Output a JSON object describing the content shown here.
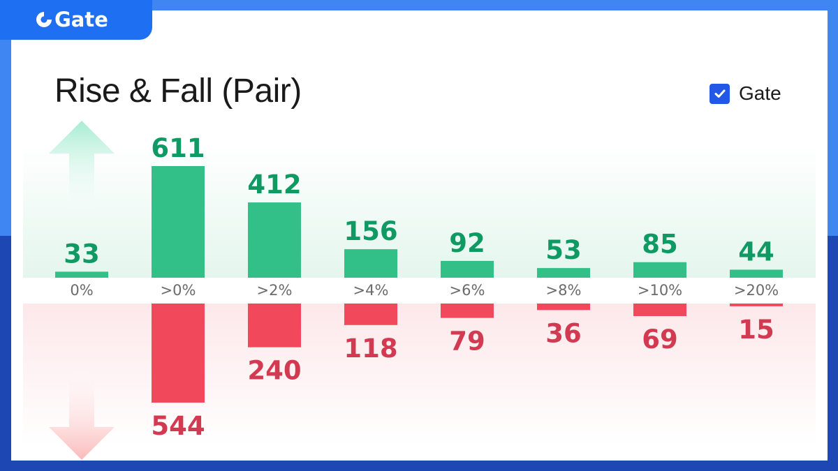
{
  "brand": {
    "name": "Gate"
  },
  "title": "Rise & Fall (Pair)",
  "legend": {
    "label": "Gate",
    "checked": true
  },
  "colors": {
    "rise": "#32c088",
    "rise_text": "#0f9a63",
    "fall": "#f2485c",
    "fall_text": "#d23a52",
    "accent": "#2357e6"
  },
  "chart_data": {
    "type": "bar",
    "categories": [
      "0%",
      ">0%",
      ">2%",
      ">4%",
      ">6%",
      ">8%",
      ">10%",
      ">20%"
    ],
    "series": [
      {
        "values": [
          33,
          611,
          412,
          156,
          92,
          53,
          85,
          44
        ]
      },
      {
        "values": [
          0,
          544,
          240,
          118,
          79,
          36,
          69,
          15
        ]
      }
    ],
    "labels_rise": [
      "33",
      "611",
      "412",
      "156",
      "92",
      "53",
      "85",
      "44"
    ],
    "labels_fall": [
      "",
      "544",
      "240",
      "118",
      "79",
      "36",
      "69",
      "15"
    ],
    "title": "Rise & Fall (Pair)",
    "xlabel": "",
    "ylabel": "",
    "grid": false,
    "legend_position": "top-right"
  }
}
